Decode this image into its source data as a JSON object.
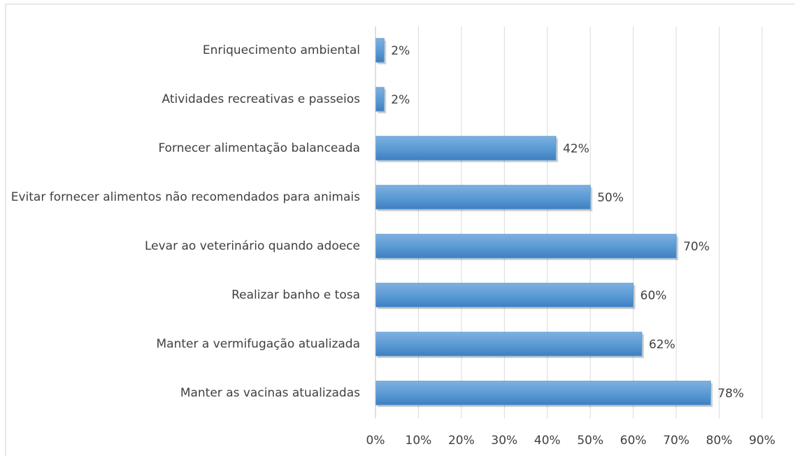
{
  "chart_data": {
    "type": "bar",
    "orientation": "horizontal",
    "categories": [
      "Enriquecimento ambiental",
      "Atividades recreativas e passeios",
      "Fornecer alimentação balanceada",
      "Evitar fornecer alimentos não recomendados para animais",
      "Levar ao veterinário quando adoece",
      "Realizar banho e tosa",
      "Manter a vermifugação atualizada",
      "Manter as vacinas atualizadas"
    ],
    "values": [
      2,
      2,
      42,
      50,
      70,
      60,
      62,
      78
    ],
    "value_labels": [
      "2%",
      "2%",
      "42%",
      "50%",
      "70%",
      "60%",
      "62%",
      "78%"
    ],
    "color": "#5b9bd5",
    "xlim": [
      0,
      90
    ],
    "xticks": [
      {
        "value": 0,
        "label": "0%"
      },
      {
        "value": 10,
        "label": "10%"
      },
      {
        "value": 20,
        "label": "20%"
      },
      {
        "value": 30,
        "label": "30%"
      },
      {
        "value": 40,
        "label": "40%"
      },
      {
        "value": 50,
        "label": "50%"
      },
      {
        "value": 60,
        "label": "60%"
      },
      {
        "value": 70,
        "label": "70%"
      },
      {
        "value": 80,
        "label": "80%"
      },
      {
        "value": 90,
        "label": "90%"
      }
    ],
    "grid": true
  }
}
